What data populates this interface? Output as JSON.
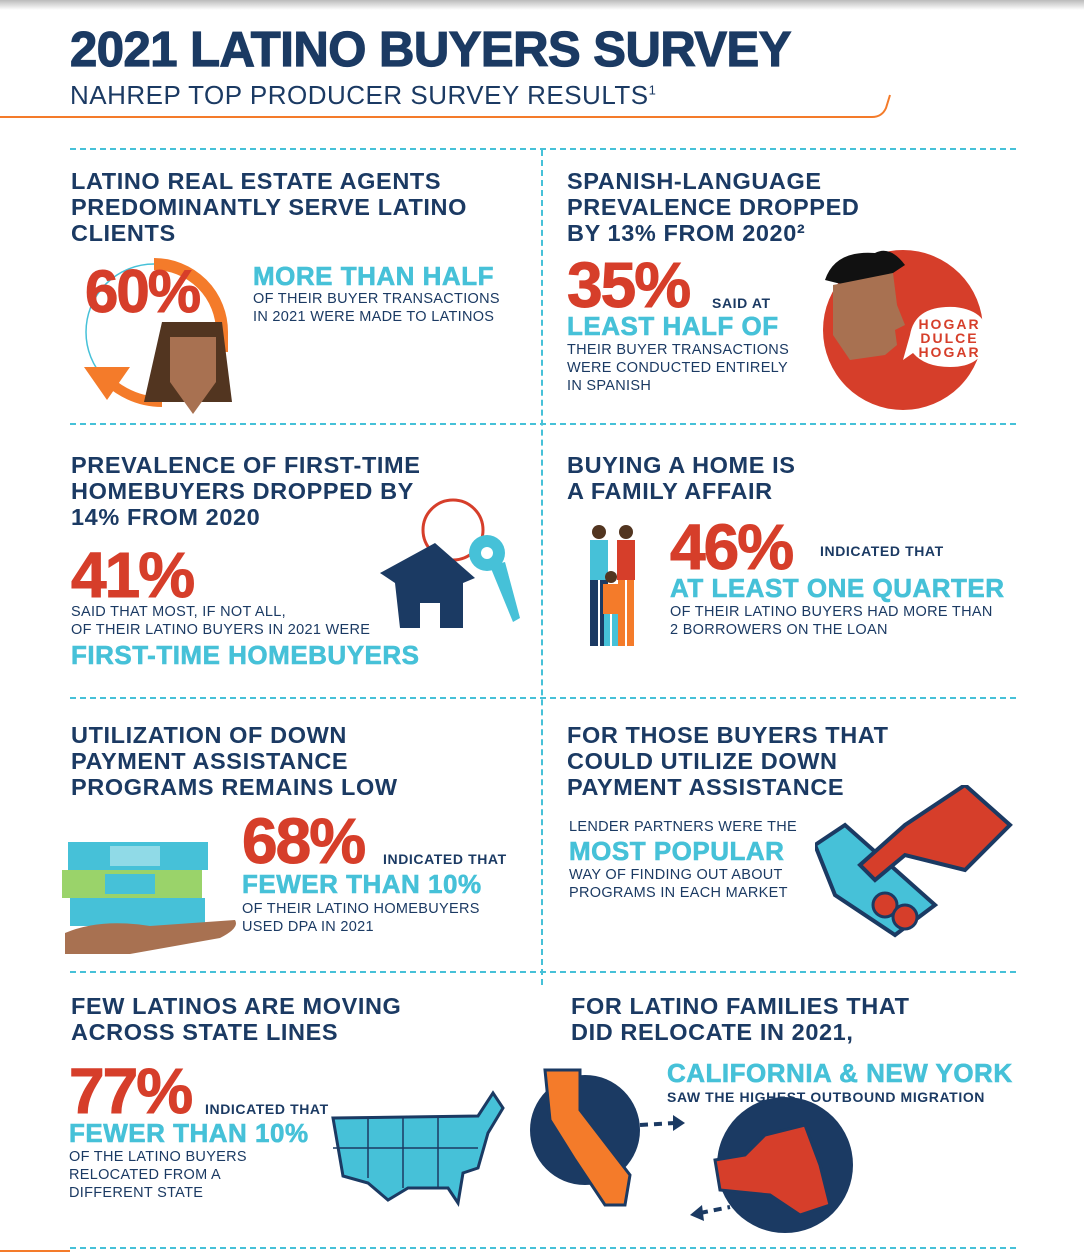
{
  "header": {
    "title": "2021 LATINO BUYERS SURVEY",
    "subtitle": "NAHREP TOP PRODUCER SURVEY RESULTS",
    "subtitle_sup": "1"
  },
  "colors": {
    "navy": "#1b3a63",
    "red": "#d63e2a",
    "cyan": "#46c1d8",
    "orange": "#f47b2a"
  },
  "sections": [
    {
      "heading": [
        "LATINO REAL ESTATE AGENTS",
        "PREDOMINANTLY SERVE LATINO",
        "CLIENTS"
      ],
      "stat": "60%",
      "highlight": "MORE THAN HALF",
      "body": [
        "OF THEIR BUYER TRANSACTIONS",
        "IN 2021 WERE MADE TO LATINOS"
      ],
      "icon": "person-cycle-icon"
    },
    {
      "heading": [
        "SPANISH-LANGUAGE",
        "PREVALENCE DROPPED",
        "BY 13% FROM 2020²"
      ],
      "stat": "35%",
      "lead": "SAID AT",
      "highlight": "LEAST HALF OF",
      "body": [
        "THEIR BUYER TRANSACTIONS",
        "WERE CONDUCTED ENTIRELY",
        "IN SPANISH"
      ],
      "bubble": [
        "HOGAR",
        "DULCE",
        "HOGAR"
      ],
      "icon": "speaking-person-icon"
    },
    {
      "heading": [
        "PREVALENCE OF FIRST-TIME",
        "HOMEBUYERS DROPPED BY",
        "14% FROM 2020"
      ],
      "stat": "41%",
      "body": [
        "SAID THAT MOST, IF NOT ALL,",
        "OF THEIR LATINO BUYERS IN 2021 WERE"
      ],
      "highlight": "FIRST-TIME HOMEBUYERS",
      "icon": "house-key-icon"
    },
    {
      "heading": [
        "BUYING A HOME IS",
        "A FAMILY AFFAIR"
      ],
      "stat": "46%",
      "lead": "INDICATED THAT",
      "highlight": "AT LEAST ONE QUARTER",
      "body": [
        "OF THEIR LATINO BUYERS HAD MORE THAN",
        "2 BORROWERS ON THE LOAN"
      ],
      "icon": "family-icon"
    },
    {
      "heading": [
        "UTILIZATION OF DOWN",
        "PAYMENT ASSISTANCE",
        "PROGRAMS REMAINS LOW"
      ],
      "stat": "68%",
      "lead": "INDICATED THAT",
      "highlight": "FEWER THAN 10%",
      "body": [
        "OF THEIR LATINO HOMEBUYERS",
        "USED DPA IN 2021"
      ],
      "icon": "money-hand-icon"
    },
    {
      "heading": [
        "FOR THOSE BUYERS THAT",
        "COULD UTILIZE DOWN",
        "PAYMENT ASSISTANCE"
      ],
      "body_top": "LENDER PARTNERS WERE THE",
      "highlight": "MOST POPULAR",
      "body": [
        "WAY OF FINDING OUT ABOUT",
        "PROGRAMS IN EACH MARKET"
      ],
      "icon": "handshake-icon"
    },
    {
      "heading": [
        "FEW LATINOS ARE MOVING",
        "ACROSS STATE LINES"
      ],
      "stat": "77%",
      "lead": "INDICATED THAT",
      "highlight": "FEWER THAN 10%",
      "body": [
        "OF THE LATINO BUYERS",
        "RELOCATED FROM A",
        "DIFFERENT STATE"
      ],
      "icon": "us-map-icon"
    },
    {
      "heading": [
        "FOR LATINO FAMILIES THAT",
        "DID RELOCATE IN 2021,"
      ],
      "highlight": "CALIFORNIA & NEW YORK",
      "body": [
        "SAW THE HIGHEST OUTBOUND MIGRATION"
      ],
      "icon": "california-newyork-icon"
    }
  ]
}
